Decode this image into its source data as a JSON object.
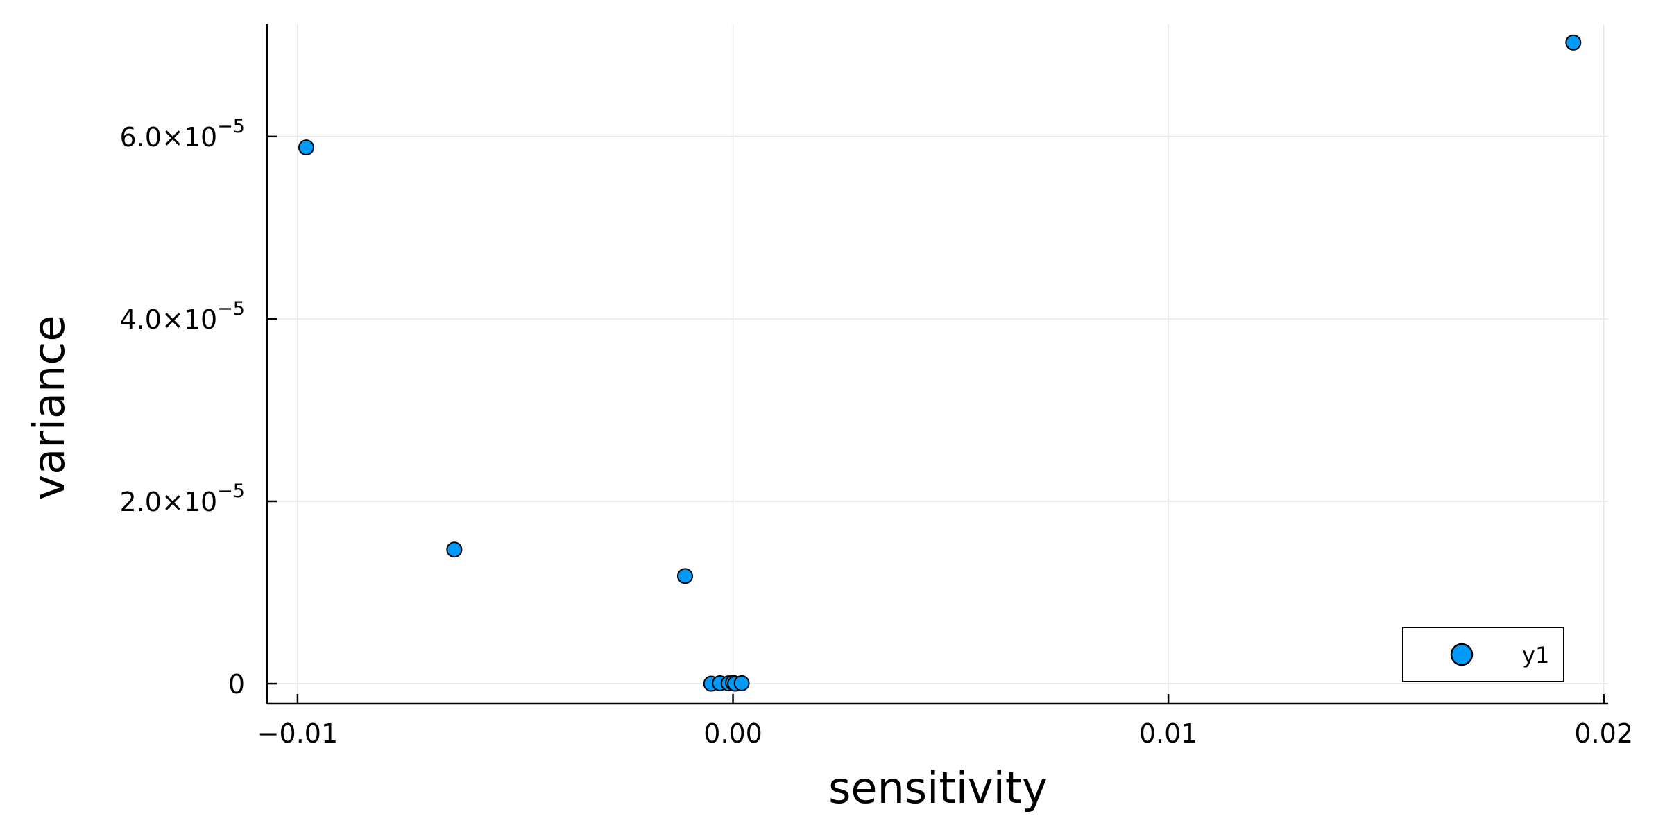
{
  "chart_data": {
    "type": "scatter",
    "title": "",
    "xlabel": "sensitivity",
    "ylabel": "variance",
    "xlim": [
      -0.0107,
      0.0201
    ],
    "ylim": [
      -2.2e-06,
      7.23e-05
    ],
    "grid": true,
    "legend_position": "bottom-right",
    "x_ticks": [
      {
        "value": -0.01,
        "label": "−0.01"
      },
      {
        "value": 0.0,
        "label": "0.00"
      },
      {
        "value": 0.01,
        "label": "0.01"
      },
      {
        "value": 0.02,
        "label": "0.02"
      }
    ],
    "y_ticks": [
      {
        "value": 0,
        "mantissa": "0",
        "exponent": ""
      },
      {
        "value": 2e-05,
        "mantissa": "2.0×10",
        "exponent": "−5"
      },
      {
        "value": 4e-05,
        "mantissa": "4.0×10",
        "exponent": "−5"
      },
      {
        "value": 6e-05,
        "mantissa": "6.0×10",
        "exponent": "−5"
      }
    ],
    "series": [
      {
        "name": "y1",
        "color": "#009af9",
        "points": [
          {
            "x": -0.0098,
            "y": 5.88e-05
          },
          {
            "x": -0.0064,
            "y": 1.47e-05
          },
          {
            "x": -0.0011,
            "y": 1.18e-05
          },
          {
            "x": -0.0005,
            "y": 0.0
          },
          {
            "x": -0.0003,
            "y": 5e-08
          },
          {
            "x": -0.0001,
            "y": 3e-08
          },
          {
            "x": 0.0,
            "y": 1e-07
          },
          {
            "x": 5e-05,
            "y": 0.0
          },
          {
            "x": 0.0002,
            "y": 5e-08
          },
          {
            "x": 0.0193,
            "y": 7.03e-05
          }
        ]
      }
    ]
  }
}
